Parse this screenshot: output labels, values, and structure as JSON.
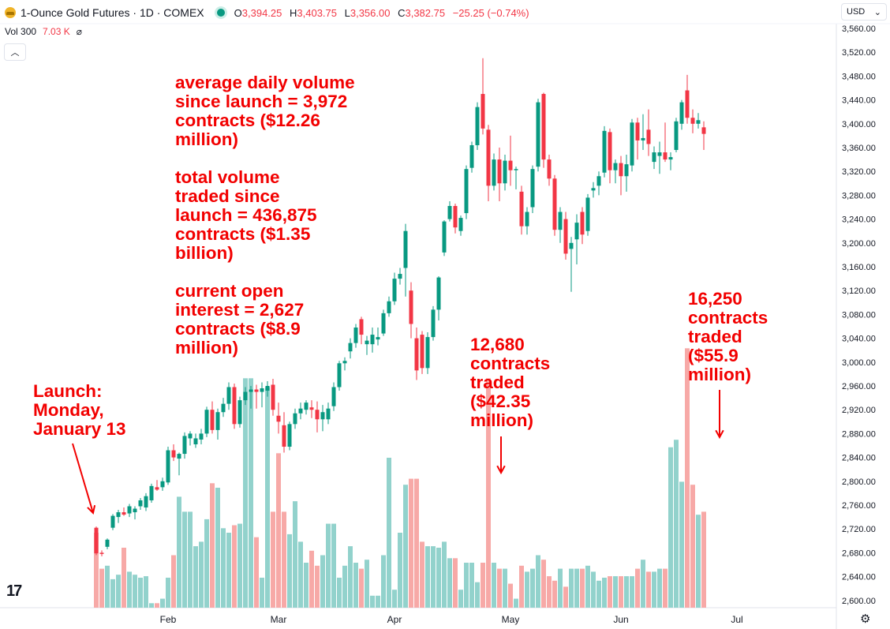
{
  "header": {
    "title": "1-Ounce Gold Futures · 1D · COMEX",
    "ohlc": [
      {
        "k": "O",
        "v": "3,394.25"
      },
      {
        "k": "H",
        "v": "3,403.75"
      },
      {
        "k": "L",
        "v": "3,356.00"
      },
      {
        "k": "C",
        "v": "3,382.75"
      }
    ],
    "change": "−25.25 (−0.74%)",
    "volume_label": "Vol 300",
    "volume_value": "7.03 K",
    "currency": "USD"
  },
  "colors": {
    "up": "#089981",
    "down": "#f23645",
    "up_volume": "#92d2cc",
    "down_volume": "#f7a9a7",
    "annotation": "#f20000"
  },
  "annotations": {
    "stats": "average daily volume\nsince launch = 3,972\ncontracts ($12.26\nmillion)\n\ntotal volume\ntraded since\nlaunch = 436,875\ncontracts ($1.35\nbillion)\n\ncurrent open\ninterest = 2,627\ncontracts ($8.9\nmillion)",
    "launch": "Launch:\nMonday,\nJanuary 13",
    "april_volume": "12,680\ncontracts\ntraded\n($42.35\nmillion)",
    "june_volume": "16,250\ncontracts\ntraded\n($55.9\nmillion)"
  },
  "chart_data": {
    "type": "candlestick",
    "title": "1-Ounce Gold Futures · 1D · COMEX",
    "y_ticks": [
      "3,560.00",
      "3,520.00",
      "3,480.00",
      "3,440.00",
      "3,400.00",
      "3,360.00",
      "3,320.00",
      "3,280.00",
      "3,240.00",
      "3,200.00",
      "3,160.00",
      "3,120.00",
      "3,080.00",
      "3,040.00",
      "3,000.00",
      "2,960.00",
      "2,920.00",
      "2,880.00",
      "2,840.00",
      "2,800.00",
      "2,760.00",
      "2,720.00",
      "2,680.00",
      "2,640.00",
      "2,600.00"
    ],
    "ylim": [
      2590,
      3570
    ],
    "x_labels": [
      "Feb",
      "Mar",
      "Apr",
      "May",
      "Jun",
      "Jul"
    ],
    "x_label_index": [
      13,
      33,
      54,
      75,
      95,
      116
    ],
    "candles": [
      {
        "o": 2722,
        "h": 2724,
        "l": 2676,
        "c": 2679,
        "v": 0.5
      },
      {
        "o": 2680,
        "h": 2684,
        "l": 2674,
        "c": 2678,
        "v": 0.26
      },
      {
        "o": 2690,
        "h": 2704,
        "l": 2686,
        "c": 2702,
        "v": 0.28
      },
      {
        "o": 2722,
        "h": 2745,
        "l": 2718,
        "c": 2742,
        "v": 0.19
      },
      {
        "o": 2740,
        "h": 2752,
        "l": 2730,
        "c": 2748,
        "v": 0.22
      },
      {
        "o": 2748,
        "h": 2756,
        "l": 2742,
        "c": 2744,
        "v": 0.4
      },
      {
        "o": 2746,
        "h": 2762,
        "l": 2740,
        "c": 2758,
        "v": 0.24
      },
      {
        "o": 2748,
        "h": 2758,
        "l": 2736,
        "c": 2754,
        "v": 0.22
      },
      {
        "o": 2758,
        "h": 2772,
        "l": 2752,
        "c": 2768,
        "v": 0.2
      },
      {
        "o": 2756,
        "h": 2780,
        "l": 2750,
        "c": 2775,
        "v": 0.21
      },
      {
        "o": 2768,
        "h": 2796,
        "l": 2764,
        "c": 2792,
        "v": 0.03
      },
      {
        "o": 2790,
        "h": 2802,
        "l": 2784,
        "c": 2786,
        "v": 0.03
      },
      {
        "o": 2790,
        "h": 2806,
        "l": 2784,
        "c": 2800,
        "v": 0.06
      },
      {
        "o": 2798,
        "h": 2858,
        "l": 2794,
        "c": 2852,
        "v": 0.2
      },
      {
        "o": 2852,
        "h": 2862,
        "l": 2834,
        "c": 2840,
        "v": 0.35
      },
      {
        "o": 2838,
        "h": 2848,
        "l": 2810,
        "c": 2846,
        "v": 0.74
      },
      {
        "o": 2846,
        "h": 2882,
        "l": 2838,
        "c": 2876,
        "v": 0.64
      },
      {
        "o": 2872,
        "h": 2884,
        "l": 2860,
        "c": 2880,
        "v": 0.64
      },
      {
        "o": 2862,
        "h": 2880,
        "l": 2856,
        "c": 2872,
        "v": 0.41
      },
      {
        "o": 2870,
        "h": 2888,
        "l": 2862,
        "c": 2880,
        "v": 0.44
      },
      {
        "o": 2880,
        "h": 2925,
        "l": 2874,
        "c": 2920,
        "v": 0.59
      },
      {
        "o": 2920,
        "h": 2934,
        "l": 2880,
        "c": 2886,
        "v": 0.83
      },
      {
        "o": 2886,
        "h": 2922,
        "l": 2870,
        "c": 2916,
        "v": 0.8
      },
      {
        "o": 2916,
        "h": 2940,
        "l": 2908,
        "c": 2930,
        "v": 0.53
      },
      {
        "o": 2930,
        "h": 2966,
        "l": 2920,
        "c": 2958,
        "v": 0.5
      },
      {
        "o": 2958,
        "h": 2964,
        "l": 2888,
        "c": 2896,
        "v": 0.55
      },
      {
        "o": 2896,
        "h": 2942,
        "l": 2890,
        "c": 2936,
        "v": 0.56
      },
      {
        "o": 2936,
        "h": 2958,
        "l": 2928,
        "c": 2950,
        "v": 1.53
      },
      {
        "o": 2950,
        "h": 2960,
        "l": 2922,
        "c": 2954,
        "v": 1.53
      },
      {
        "o": 2954,
        "h": 2962,
        "l": 2922,
        "c": 2950,
        "v": 0.47
      },
      {
        "o": 2950,
        "h": 2966,
        "l": 2924,
        "c": 2956,
        "v": 0.2
      },
      {
        "o": 2952,
        "h": 2968,
        "l": 2942,
        "c": 2960,
        "v": 1.47
      },
      {
        "o": 2962,
        "h": 2972,
        "l": 2910,
        "c": 2920,
        "v": 0.64
      },
      {
        "o": 2910,
        "h": 2932,
        "l": 2880,
        "c": 2900,
        "v": 1.03
      },
      {
        "o": 2894,
        "h": 2916,
        "l": 2848,
        "c": 2858,
        "v": 0.64
      },
      {
        "o": 2858,
        "h": 2900,
        "l": 2852,
        "c": 2896,
        "v": 0.49
      },
      {
        "o": 2896,
        "h": 2922,
        "l": 2888,
        "c": 2914,
        "v": 0.71
      },
      {
        "o": 2914,
        "h": 2932,
        "l": 2904,
        "c": 2922,
        "v": 0.44
      },
      {
        "o": 2920,
        "h": 2936,
        "l": 2912,
        "c": 2932,
        "v": 0.3
      },
      {
        "o": 2924,
        "h": 2936,
        "l": 2906,
        "c": 2920,
        "v": 0.38
      },
      {
        "o": 2920,
        "h": 2934,
        "l": 2882,
        "c": 2904,
        "v": 0.28
      },
      {
        "o": 2904,
        "h": 2928,
        "l": 2884,
        "c": 2916,
        "v": 0.35
      },
      {
        "o": 2904,
        "h": 2932,
        "l": 2896,
        "c": 2922,
        "v": 0.56
      },
      {
        "o": 2926,
        "h": 2966,
        "l": 2918,
        "c": 2958,
        "v": 0.56
      },
      {
        "o": 2958,
        "h": 3002,
        "l": 2952,
        "c": 2998,
        "v": 0.2
      },
      {
        "o": 2998,
        "h": 3008,
        "l": 2986,
        "c": 3002,
        "v": 0.28
      },
      {
        "o": 3018,
        "h": 3040,
        "l": 3006,
        "c": 3032,
        "v": 0.41
      },
      {
        "o": 3032,
        "h": 3064,
        "l": 3024,
        "c": 3058,
        "v": 0.3
      },
      {
        "o": 3072,
        "h": 3076,
        "l": 3030,
        "c": 3046,
        "v": 0.26
      },
      {
        "o": 3030,
        "h": 3044,
        "l": 3012,
        "c": 3036,
        "v": 0.32
      },
      {
        "o": 3030,
        "h": 3058,
        "l": 3016,
        "c": 3046,
        "v": 0.08
      },
      {
        "o": 3038,
        "h": 3058,
        "l": 3028,
        "c": 3042,
        "v": 0.08
      },
      {
        "o": 3048,
        "h": 3088,
        "l": 3044,
        "c": 3082,
        "v": 0.35
      },
      {
        "o": 3082,
        "h": 3110,
        "l": 3076,
        "c": 3102,
        "v": 1.0
      },
      {
        "o": 3102,
        "h": 3150,
        "l": 3096,
        "c": 3140,
        "v": 0.12
      },
      {
        "o": 3140,
        "h": 3158,
        "l": 3130,
        "c": 3148,
        "v": 0.5
      },
      {
        "o": 3158,
        "h": 3232,
        "l": 3110,
        "c": 3220,
        "v": 0.82
      },
      {
        "o": 3120,
        "h": 3134,
        "l": 3040,
        "c": 3064,
        "v": 0.86
      },
      {
        "o": 3040,
        "h": 3058,
        "l": 2970,
        "c": 2986,
        "v": 0.86
      },
      {
        "o": 3046,
        "h": 3052,
        "l": 2980,
        "c": 2990,
        "v": 0.44
      },
      {
        "o": 2990,
        "h": 3050,
        "l": 2980,
        "c": 3042,
        "v": 0.41
      },
      {
        "o": 3042,
        "h": 3094,
        "l": 3036,
        "c": 3088,
        "v": 0.41
      },
      {
        "o": 3088,
        "h": 3144,
        "l": 3070,
        "c": 3142,
        "v": 0.4
      },
      {
        "o": 3184,
        "h": 3238,
        "l": 3178,
        "c": 3236,
        "v": 0.44
      },
      {
        "o": 3240,
        "h": 3270,
        "l": 3236,
        "c": 3262,
        "v": 0.33
      },
      {
        "o": 3262,
        "h": 3266,
        "l": 3216,
        "c": 3226,
        "v": 0.33
      },
      {
        "o": 3220,
        "h": 3246,
        "l": 3212,
        "c": 3242,
        "v": 0.12
      },
      {
        "o": 3250,
        "h": 3330,
        "l": 3240,
        "c": 3324,
        "v": 0.3
      },
      {
        "o": 3326,
        "h": 3370,
        "l": 3318,
        "c": 3364,
        "v": 0.3
      },
      {
        "o": 3364,
        "h": 3436,
        "l": 3356,
        "c": 3428,
        "v": 0.17
      },
      {
        "o": 3450,
        "h": 3510,
        "l": 3382,
        "c": 3392,
        "v": 0.3
      },
      {
        "o": 3390,
        "h": 3398,
        "l": 3270,
        "c": 3296,
        "v": 1.53
      },
      {
        "o": 3296,
        "h": 3350,
        "l": 3288,
        "c": 3340,
        "v": 0.3
      },
      {
        "o": 3340,
        "h": 3360,
        "l": 3270,
        "c": 3300,
        "v": 0.26
      },
      {
        "o": 3300,
        "h": 3348,
        "l": 3288,
        "c": 3338,
        "v": 0.26
      },
      {
        "o": 3338,
        "h": 3380,
        "l": 3296,
        "c": 3322,
        "v": 0.16
      },
      {
        "o": 3322,
        "h": 3328,
        "l": 3290,
        "c": 3324,
        "v": 0.06
      },
      {
        "o": 3286,
        "h": 3296,
        "l": 3214,
        "c": 3228,
        "v": 0.28
      },
      {
        "o": 3228,
        "h": 3260,
        "l": 3214,
        "c": 3252,
        "v": 0.24
      },
      {
        "o": 3260,
        "h": 3330,
        "l": 3250,
        "c": 3324,
        "v": 0.26
      },
      {
        "o": 3328,
        "h": 3442,
        "l": 3320,
        "c": 3436,
        "v": 0.35
      },
      {
        "o": 3450,
        "h": 3452,
        "l": 3326,
        "c": 3340,
        "v": 0.32
      },
      {
        "o": 3340,
        "h": 3348,
        "l": 3296,
        "c": 3308,
        "v": 0.21
      },
      {
        "o": 3308,
        "h": 3314,
        "l": 3212,
        "c": 3222,
        "v": 0.18
      },
      {
        "o": 3222,
        "h": 3260,
        "l": 3200,
        "c": 3252,
        "v": 0.26
      },
      {
        "o": 3240,
        "h": 3252,
        "l": 3172,
        "c": 3182,
        "v": 0.14
      },
      {
        "o": 3190,
        "h": 3210,
        "l": 3118,
        "c": 3200,
        "v": 0.26
      },
      {
        "o": 3206,
        "h": 3248,
        "l": 3164,
        "c": 3234,
        "v": 0.26
      },
      {
        "o": 3252,
        "h": 3260,
        "l": 3198,
        "c": 3214,
        "v": 0.26
      },
      {
        "o": 3220,
        "h": 3282,
        "l": 3212,
        "c": 3276,
        "v": 0.28
      },
      {
        "o": 3288,
        "h": 3302,
        "l": 3276,
        "c": 3292,
        "v": 0.24
      },
      {
        "o": 3296,
        "h": 3320,
        "l": 3280,
        "c": 3312,
        "v": 0.18
      },
      {
        "o": 3318,
        "h": 3396,
        "l": 3310,
        "c": 3388,
        "v": 0.2
      },
      {
        "o": 3386,
        "h": 3392,
        "l": 3300,
        "c": 3322,
        "v": 0.21
      },
      {
        "o": 3322,
        "h": 3340,
        "l": 3300,
        "c": 3334,
        "v": 0.21
      },
      {
        "o": 3334,
        "h": 3346,
        "l": 3280,
        "c": 3312,
        "v": 0.21
      },
      {
        "o": 3312,
        "h": 3348,
        "l": 3286,
        "c": 3332,
        "v": 0.21
      },
      {
        "o": 3330,
        "h": 3408,
        "l": 3320,
        "c": 3402,
        "v": 0.21
      },
      {
        "o": 3402,
        "h": 3410,
        "l": 3340,
        "c": 3372,
        "v": 0.26
      },
      {
        "o": 3372,
        "h": 3416,
        "l": 3356,
        "c": 3376,
        "v": 0.32
      },
      {
        "o": 3390,
        "h": 3424,
        "l": 3346,
        "c": 3366,
        "v": 0.24
      },
      {
        "o": 3336,
        "h": 3362,
        "l": 3324,
        "c": 3352,
        "v": 0.24
      },
      {
        "o": 3346,
        "h": 3370,
        "l": 3316,
        "c": 3352,
        "v": 0.26
      },
      {
        "o": 3352,
        "h": 3402,
        "l": 3336,
        "c": 3340,
        "v": 0.26
      },
      {
        "o": 3340,
        "h": 3352,
        "l": 3322,
        "c": 3344,
        "v": 1.07
      },
      {
        "o": 3356,
        "h": 3410,
        "l": 3352,
        "c": 3404,
        "v": 1.12
      },
      {
        "o": 3400,
        "h": 3440,
        "l": 3390,
        "c": 3436,
        "v": 0.84
      },
      {
        "o": 3456,
        "h": 3482,
        "l": 3400,
        "c": 3410,
        "v": 1.73
      },
      {
        "o": 3410,
        "h": 3424,
        "l": 3384,
        "c": 3400,
        "v": 0.82
      },
      {
        "o": 3400,
        "h": 3418,
        "l": 3392,
        "c": 3406,
        "v": 0.62
      },
      {
        "o": 3394,
        "h": 3404,
        "l": 3356,
        "c": 3383,
        "v": 0.64
      }
    ]
  }
}
